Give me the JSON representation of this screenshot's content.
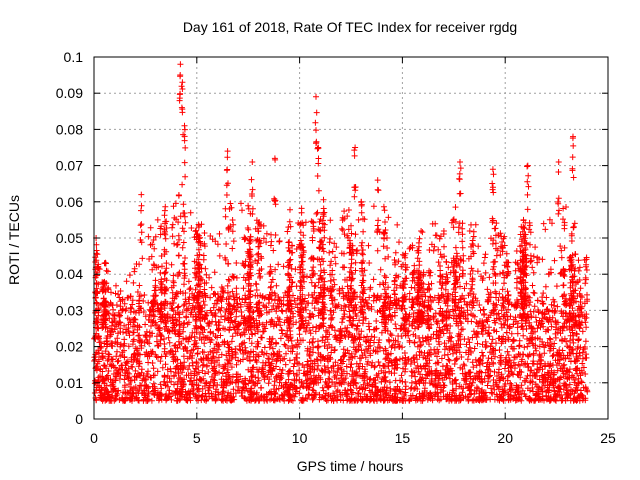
{
  "chart_data": {
    "type": "scatter",
    "title": "Day 161 of 2018, Rate Of TEC Index for receiver rgdg",
    "xlabel": "GPS time / hours",
    "ylabel": "ROTI / TECUs",
    "xlim": [
      0,
      25
    ],
    "ylim": [
      0,
      0.1
    ],
    "x_ticks": [
      0,
      5,
      10,
      15,
      20,
      25
    ],
    "y_ticks": [
      0,
      0.01,
      0.02,
      0.03,
      0.04,
      0.05,
      0.06,
      0.07,
      0.08,
      0.09,
      0.1
    ],
    "x_tick_labels": [
      "0",
      "5",
      "10",
      "15",
      "20",
      "25"
    ],
    "y_tick_labels": [
      "0",
      "0.01",
      "0.02",
      "0.03",
      "0.04",
      "0.05",
      "0.06",
      "0.07",
      "0.08",
      "0.09",
      "0.1"
    ],
    "grid": true,
    "marker": "+",
    "color": "#ff0000",
    "x_range_of_data": [
      0,
      24
    ],
    "baseline_band": [
      0.005,
      0.025
    ],
    "peaks": [
      {
        "x": 0.1,
        "y": 0.05
      },
      {
        "x": 2.3,
        "y": 0.062
      },
      {
        "x": 4.2,
        "y": 0.098
      },
      {
        "x": 4.3,
        "y": 0.093
      },
      {
        "x": 4.4,
        "y": 0.081
      },
      {
        "x": 6.5,
        "y": 0.074
      },
      {
        "x": 7.7,
        "y": 0.071
      },
      {
        "x": 8.8,
        "y": 0.072
      },
      {
        "x": 10.8,
        "y": 0.089
      },
      {
        "x": 10.9,
        "y": 0.075
      },
      {
        "x": 12.7,
        "y": 0.075
      },
      {
        "x": 13.8,
        "y": 0.066
      },
      {
        "x": 17.8,
        "y": 0.071
      },
      {
        "x": 19.4,
        "y": 0.069
      },
      {
        "x": 21.1,
        "y": 0.07
      },
      {
        "x": 22.6,
        "y": 0.071
      },
      {
        "x": 23.3,
        "y": 0.078
      }
    ]
  }
}
